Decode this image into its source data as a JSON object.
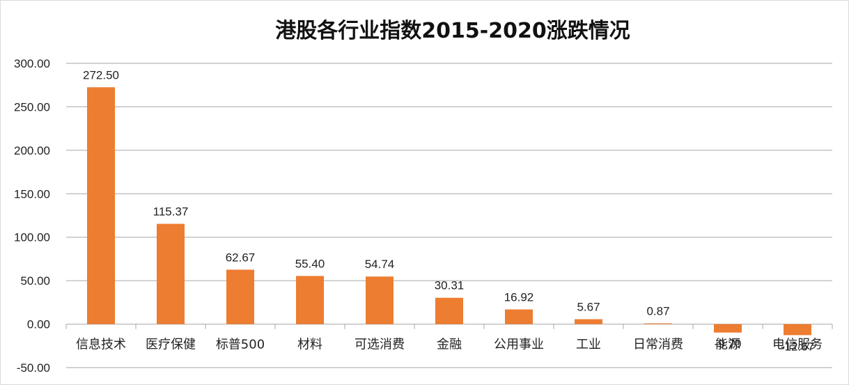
{
  "chart_data": {
    "type": "bar",
    "title": "港股各行业指数2015-2020涨跌情况",
    "categories": [
      "信息技术",
      "医疗保健",
      "标普500",
      "材料",
      "可选消费",
      "金融",
      "公用事业",
      "工业",
      "日常消费",
      "能源",
      "电信服务"
    ],
    "values": [
      272.5,
      115.37,
      62.67,
      55.4,
      54.74,
      30.31,
      16.92,
      5.67,
      0.87,
      -9.7,
      -12.67
    ],
    "data_labels": [
      "272.50",
      "115.37",
      "62.67",
      "55.40",
      "54.74",
      "30.31",
      "16.92",
      "5.67",
      "0.87",
      "-9.70",
      "-12.67"
    ],
    "y_ticks": [
      "300.00",
      "250.00",
      "200.00",
      "150.00",
      "100.00",
      "50.00",
      "0.00",
      "-50.00"
    ],
    "ylim": [
      -50,
      300
    ],
    "grid": true,
    "legend": "none",
    "bar_color": "#ED7D31",
    "grid_color": "#A6A6A6",
    "xlabel": "",
    "ylabel": ""
  }
}
